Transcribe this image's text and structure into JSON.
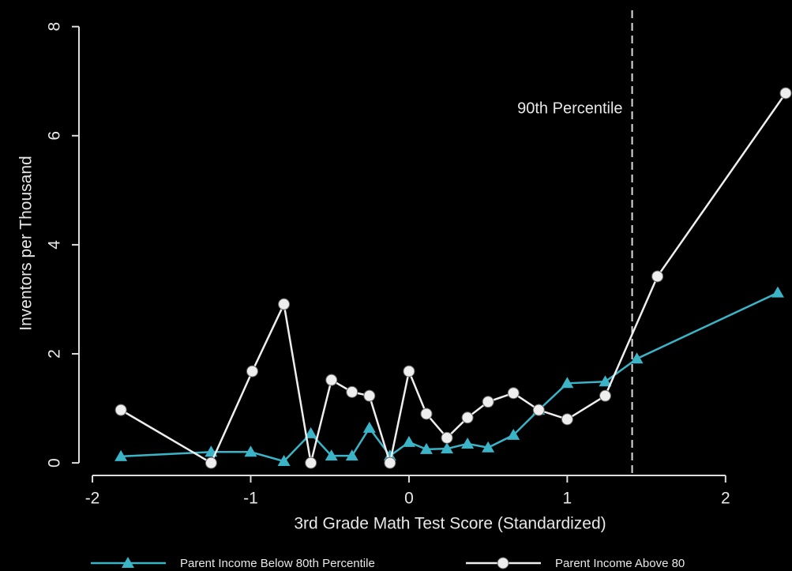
{
  "chart_data": {
    "type": "line",
    "x_label": "3rd Grade Math Test Score (Standardized)",
    "y_label": "Inventors per Thousand",
    "xlim": [
      -2.1,
      2.42
    ],
    "ylim": [
      -0.23,
      8.3
    ],
    "xticks": [
      -2,
      -1,
      0,
      1,
      2
    ],
    "yticks": [
      0,
      2,
      4,
      6,
      8
    ],
    "annotation": {
      "text": "90th Percentile",
      "x": 1.41
    },
    "series": [
      {
        "name": "Parent Income Below 80th Percentile",
        "color": "#3bb4c8",
        "marker": "triangle",
        "x": [
          -1.82,
          -1.25,
          -1.0,
          -0.79,
          -0.62,
          -0.49,
          -0.36,
          -0.25,
          -0.12,
          0.0,
          0.11,
          0.24,
          0.37,
          0.5,
          0.66,
          0.82,
          1.0,
          1.24,
          1.44,
          2.33
        ],
        "values": [
          0.12,
          0.2,
          0.2,
          0.03,
          0.54,
          0.13,
          0.13,
          0.64,
          0.13,
          0.38,
          0.25,
          0.26,
          0.35,
          0.28,
          0.51,
          0.97,
          1.46,
          1.49,
          1.91,
          3.12
        ]
      },
      {
        "name": "Parent Income Above 80",
        "color": "#eeeeee",
        "marker": "circle",
        "x": [
          -1.82,
          -1.25,
          -0.99,
          -0.79,
          -0.62,
          -0.49,
          -0.36,
          -0.25,
          -0.12,
          0.0,
          0.11,
          0.24,
          0.37,
          0.5,
          0.66,
          0.82,
          1.0,
          1.24,
          1.57,
          2.38
        ],
        "values": [
          0.97,
          0.0,
          1.68,
          2.91,
          0.0,
          1.52,
          1.3,
          1.23,
          0.0,
          1.68,
          0.9,
          0.46,
          0.83,
          1.12,
          1.28,
          0.97,
          0.8,
          1.23,
          3.42,
          6.78
        ]
      }
    ]
  }
}
